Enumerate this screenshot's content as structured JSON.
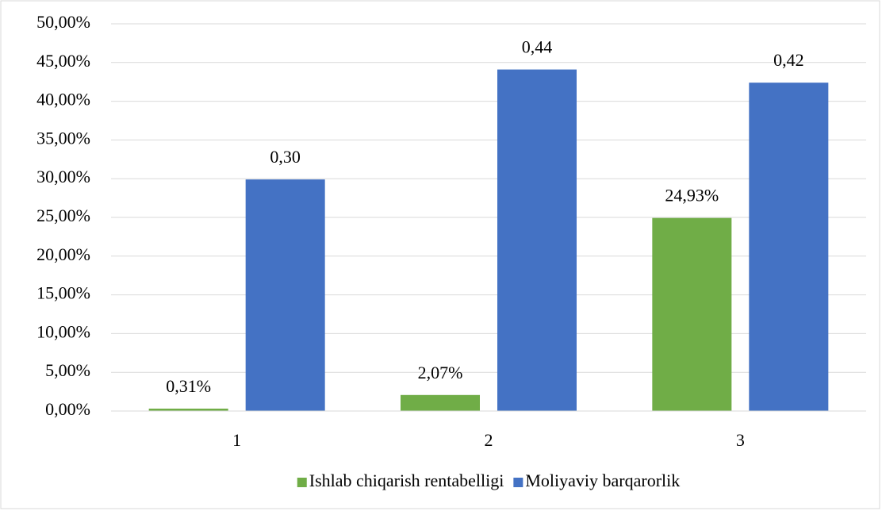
{
  "chart_data": {
    "type": "bar",
    "categories": [
      "1",
      "2",
      "3"
    ],
    "series": [
      {
        "name": "Ishlab chiqarish rentabelligi",
        "color": "#70ad47",
        "values": [
          0.31,
          2.07,
          24.93
        ],
        "value_labels": [
          "0,31%",
          "2,07%",
          "24,93%"
        ]
      },
      {
        "name": "Moliyaviy barqarorlik",
        "color": "#4472c4",
        "values": [
          29.9,
          44.1,
          42.4
        ],
        "value_labels": [
          "0,30",
          "0,44",
          "0,42"
        ]
      }
    ],
    "ylim": [
      0,
      50
    ],
    "yticks": [
      {
        "value": 0,
        "label": "0,00%"
      },
      {
        "value": 5,
        "label": "5,00%"
      },
      {
        "value": 10,
        "label": "10,00%"
      },
      {
        "value": 15,
        "label": "15,00%"
      },
      {
        "value": 20,
        "label": "20,00%"
      },
      {
        "value": 25,
        "label": "25,00%"
      },
      {
        "value": 30,
        "label": "30,00%"
      },
      {
        "value": 35,
        "label": "35,00%"
      },
      {
        "value": 40,
        "label": "40,00%"
      },
      {
        "value": 45,
        "label": "45,00%"
      },
      {
        "value": 50,
        "label": "50,00%"
      }
    ],
    "grid": true,
    "legend": "bottom"
  }
}
